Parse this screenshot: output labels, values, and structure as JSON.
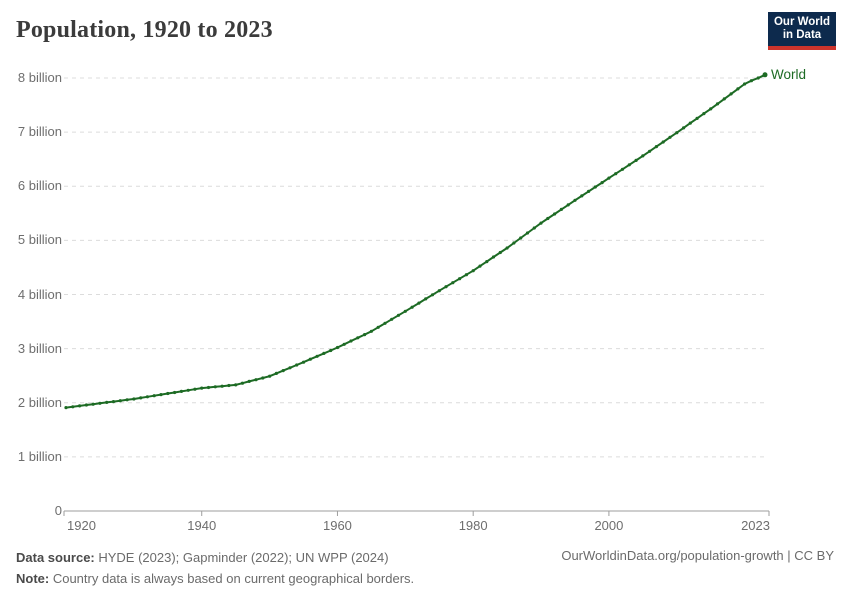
{
  "header": {
    "title": "Population, 1920 to 2023",
    "logo": {
      "line1": "Our World",
      "line2": "in Data",
      "bg_color": "#0d2a4d",
      "accent_color": "#cc342c"
    }
  },
  "chart_data": {
    "type": "line",
    "title": "Population, 1920 to 2023",
    "unit": "billions of people",
    "grid": "horizontal dashed",
    "legend": "end-of-line entity label",
    "point_markers": true,
    "ylim_billions": [
      0,
      8.4
    ],
    "xlim": [
      1920,
      2023
    ],
    "yticks": [
      {
        "value": 0,
        "label": "0"
      },
      {
        "value": 1,
        "label": "1 billion"
      },
      {
        "value": 2,
        "label": "2 billion"
      },
      {
        "value": 3,
        "label": "3 billion"
      },
      {
        "value": 4,
        "label": "4 billion"
      },
      {
        "value": 5,
        "label": "5 billion"
      },
      {
        "value": 6,
        "label": "6 billion"
      },
      {
        "value": 7,
        "label": "7 billion"
      },
      {
        "value": 8,
        "label": "8 billion"
      }
    ],
    "xticks": [
      {
        "value": 1920,
        "label": "1920"
      },
      {
        "value": 1940,
        "label": "1940"
      },
      {
        "value": 1960,
        "label": "1960"
      },
      {
        "value": 1980,
        "label": "1980"
      },
      {
        "value": 2000,
        "label": "2000"
      },
      {
        "value": 2023,
        "label": "2023"
      }
    ],
    "x": [
      1920,
      1921,
      1922,
      1923,
      1924,
      1925,
      1926,
      1927,
      1928,
      1929,
      1930,
      1931,
      1932,
      1933,
      1934,
      1935,
      1936,
      1937,
      1938,
      1939,
      1940,
      1941,
      1942,
      1943,
      1944,
      1945,
      1946,
      1947,
      1948,
      1949,
      1950,
      1951,
      1952,
      1953,
      1954,
      1955,
      1956,
      1957,
      1958,
      1959,
      1960,
      1961,
      1962,
      1963,
      1964,
      1965,
      1966,
      1967,
      1968,
      1969,
      1970,
      1971,
      1972,
      1973,
      1974,
      1975,
      1976,
      1977,
      1978,
      1979,
      1980,
      1981,
      1982,
      1983,
      1984,
      1985,
      1986,
      1987,
      1988,
      1989,
      1990,
      1991,
      1992,
      1993,
      1994,
      1995,
      1996,
      1997,
      1998,
      1999,
      2000,
      2001,
      2002,
      2003,
      2004,
      2005,
      2006,
      2007,
      2008,
      2009,
      2010,
      2011,
      2012,
      2013,
      2014,
      2015,
      2016,
      2017,
      2018,
      2019,
      2020,
      2021,
      2022,
      2023
    ],
    "series": [
      {
        "name": "World",
        "color": "#1d6b24",
        "values_billions": [
          1.91,
          1.926,
          1.942,
          1.958,
          1.974,
          1.99,
          2.006,
          2.022,
          2.038,
          2.054,
          2.07,
          2.09,
          2.11,
          2.13,
          2.15,
          2.17,
          2.19,
          2.21,
          2.23,
          2.25,
          2.27,
          2.282,
          2.294,
          2.306,
          2.318,
          2.33,
          2.362,
          2.394,
          2.426,
          2.458,
          2.49,
          2.542,
          2.594,
          2.646,
          2.698,
          2.75,
          2.804,
          2.858,
          2.912,
          2.966,
          3.02,
          3.08,
          3.14,
          3.2,
          3.26,
          3.32,
          3.394,
          3.468,
          3.542,
          3.616,
          3.69,
          3.766,
          3.842,
          3.918,
          3.994,
          4.07,
          4.144,
          4.218,
          4.292,
          4.366,
          4.44,
          4.524,
          4.608,
          4.692,
          4.776,
          4.86,
          4.952,
          5.044,
          5.136,
          5.228,
          5.32,
          5.404,
          5.488,
          5.572,
          5.656,
          5.74,
          5.822,
          5.904,
          5.986,
          6.068,
          6.15,
          6.232,
          6.314,
          6.396,
          6.478,
          6.56,
          6.646,
          6.732,
          6.818,
          6.904,
          6.99,
          7.078,
          7.166,
          7.254,
          7.342,
          7.43,
          7.522,
          7.614,
          7.706,
          7.798,
          7.89,
          7.95,
          8.0,
          8.06
        ]
      }
    ]
  },
  "footer": {
    "datasource_label": "Data source:",
    "datasource_text": " HYDE (2023); Gapminder (2022); UN WPP (2024)",
    "note_label": "Note:",
    "note_text": " Country data is always based on current geographical borders.",
    "link_text": "OurWorldinData.org/population-growth | CC BY"
  }
}
